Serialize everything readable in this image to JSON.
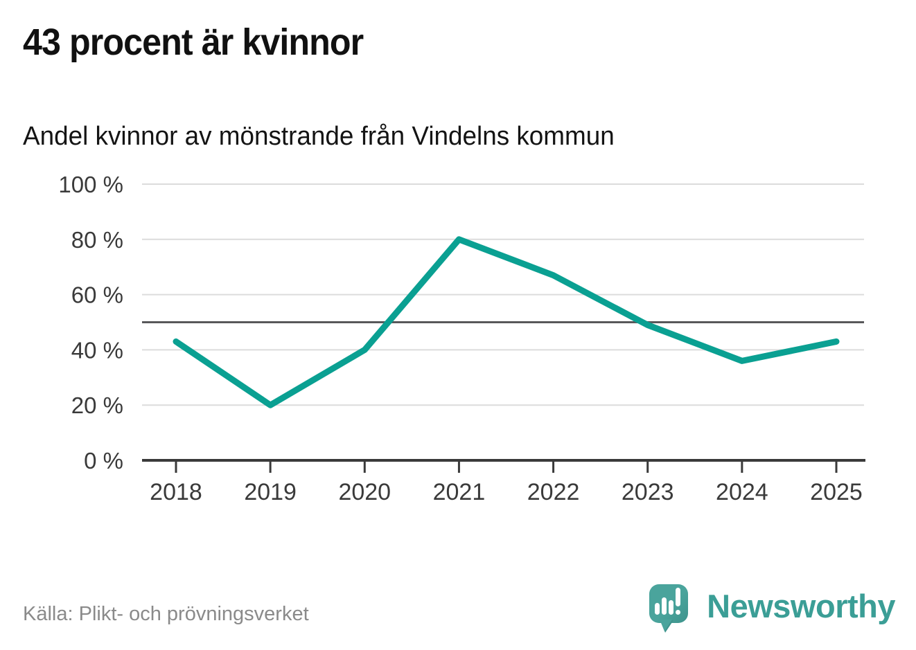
{
  "header": {
    "title": "43 procent är kvinnor",
    "subtitle": "Andel kvinnor av mönstrande från Vindelns kommun"
  },
  "chart_data": {
    "type": "line",
    "title": "43 procent är kvinnor",
    "subtitle": "Andel kvinnor av mönstrande från Vindelns kommun",
    "categories": [
      "2018",
      "2019",
      "2020",
      "2021",
      "2022",
      "2023",
      "2024",
      "2025"
    ],
    "series": [
      {
        "name": "Andel kvinnor av mönstrande",
        "values": [
          43,
          20,
          40,
          80,
          67,
          49,
          36,
          43
        ]
      }
    ],
    "unit": "%",
    "xlabel": "",
    "ylabel": "",
    "ylim": [
      0,
      100
    ],
    "yticks": [
      0,
      20,
      40,
      60,
      80,
      100
    ],
    "ytick_labels": [
      "0 %",
      "20 %",
      "40 %",
      "60 %",
      "80 %",
      "100 %"
    ],
    "reference_line": {
      "value": 50
    },
    "grid": true,
    "legend": false,
    "colors": {
      "line": "#0aa092",
      "grid": "#dcdcdc",
      "reference": "#58585a",
      "axis": "#3a3a3a",
      "tick_label": "#3a3a3a"
    }
  },
  "footer": {
    "source": "Källa: Plikt- och prövningsverket",
    "brand_name": "Newsworthy",
    "brand_colors": {
      "bubble_teal": "#4aa49c",
      "bubble_shade": "#3e938c",
      "wordmark_teal": "#3b9e96",
      "icon_glyphs": "#ffffff"
    },
    "logo_icon": "speech-bubble-bar-chart-exclamation-icon"
  }
}
